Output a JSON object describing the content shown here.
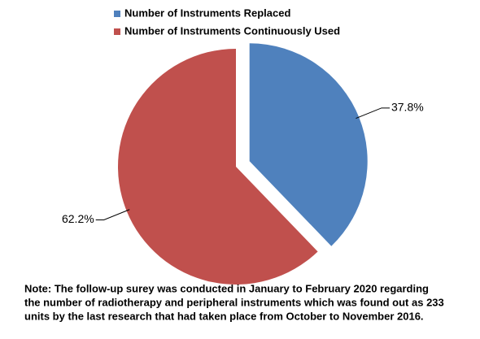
{
  "chart_data": {
    "type": "pie",
    "categories": [
      "Number of Instruments Replaced",
      "Number of Instruments Continuously Used"
    ],
    "values": [
      37.8,
      62.2
    ],
    "value_labels": [
      "37.8%",
      "62.2%"
    ],
    "colors": [
      "#4f81bd",
      "#c0504d"
    ],
    "legend": "top",
    "note": [
      "Note: The follow-up surey was conducted  in January to February 2020 regarding",
      "the number of radiotherapy and peripheral instruments which was found out as 233",
      "units by the last research that had taken place from October to November  2016."
    ]
  }
}
